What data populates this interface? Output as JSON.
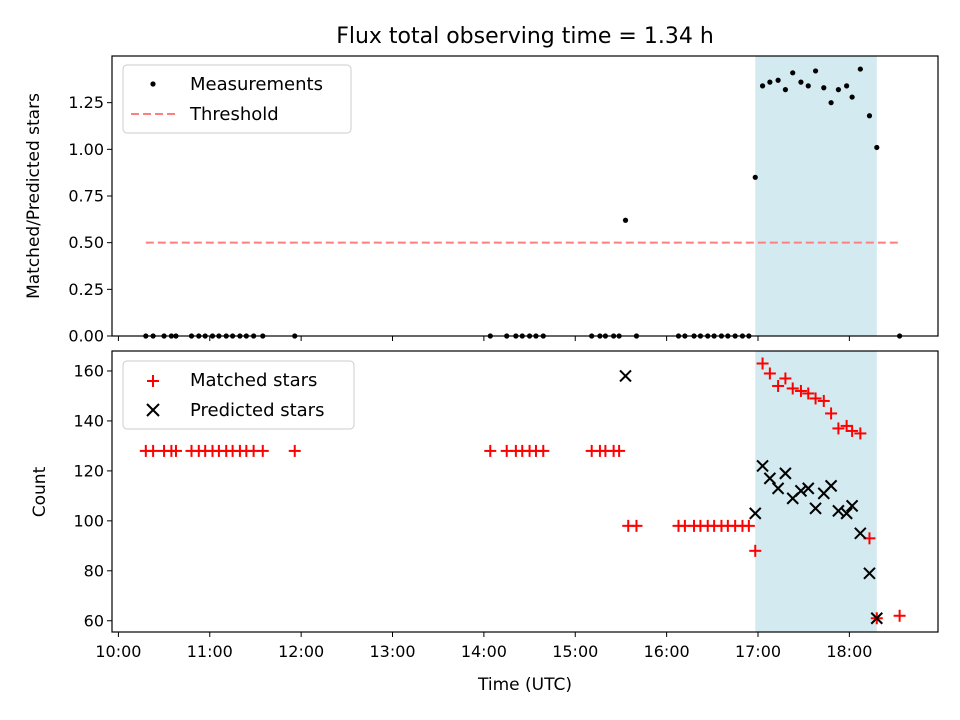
{
  "chart_data": {
    "title": "Flux total observing time = 1.34 h",
    "xlabel": "Time (UTC)",
    "x_ticks": [
      "10:00",
      "11:00",
      "12:00",
      "13:00",
      "14:00",
      "15:00",
      "16:00",
      "17:00",
      "18:00"
    ],
    "x_tick_values": [
      10,
      11,
      12,
      13,
      14,
      15,
      16,
      17,
      18
    ],
    "xlim": [
      9.93,
      18.97
    ],
    "highlight_span": [
      16.97,
      18.3
    ],
    "highlight_color": "#d3eaf0",
    "panels": [
      {
        "type": "scatter",
        "ylabel": "Matched/Predicted stars",
        "ylim": [
          0,
          1.5
        ],
        "y_ticks": [
          "0.00",
          "0.25",
          "0.50",
          "0.75",
          "1.00",
          "1.25"
        ],
        "y_tick_values": [
          0,
          0.25,
          0.5,
          0.75,
          1.0,
          1.25
        ],
        "legend": [
          "Measurements",
          "Threshold"
        ],
        "series": [
          {
            "name": "Measurements",
            "color": "#000000",
            "marker": "dot",
            "x": [
              10.3,
              10.38,
              10.5,
              10.58,
              10.63,
              10.8,
              10.88,
              10.95,
              11.03,
              11.1,
              11.18,
              11.25,
              11.33,
              11.4,
              11.48,
              11.58,
              11.93,
              14.07,
              14.25,
              14.35,
              14.42,
              14.5,
              14.57,
              14.65,
              15.18,
              15.27,
              15.33,
              15.42,
              15.48,
              15.55,
              15.67,
              16.13,
              16.2,
              16.3,
              16.37,
              16.45,
              16.52,
              16.6,
              16.67,
              16.75,
              16.83,
              16.9,
              16.97,
              17.05,
              17.13,
              17.22,
              17.3,
              17.38,
              17.47,
              17.55,
              17.63,
              17.72,
              17.8,
              17.88,
              17.97,
              18.03,
              18.12,
              18.22,
              18.3,
              18.55
            ],
            "y": [
              0,
              0,
              0,
              0,
              0,
              0,
              0,
              0,
              0,
              0,
              0,
              0,
              0,
              0,
              0,
              0,
              0,
              0,
              0,
              0,
              0,
              0,
              0,
              0,
              0,
              0,
              0,
              0,
              0,
              0.62,
              0,
              0,
              0,
              0,
              0,
              0,
              0,
              0,
              0,
              0,
              0,
              0,
              0.85,
              1.34,
              1.36,
              1.37,
              1.32,
              1.41,
              1.36,
              1.34,
              1.42,
              1.33,
              1.25,
              1.32,
              1.34,
              1.28,
              1.43,
              1.18,
              1.01,
              0
            ]
          },
          {
            "name": "Threshold",
            "color": "#ff7f7f",
            "style": "dashed",
            "x": [
              10.3,
              18.55
            ],
            "y": [
              0.5,
              0.5
            ]
          }
        ]
      },
      {
        "type": "scatter",
        "ylabel": "Count",
        "ylim": [
          55.5,
          168
        ],
        "y_ticks": [
          "60",
          "80",
          "100",
          "120",
          "140",
          "160"
        ],
        "y_tick_values": [
          60,
          80,
          100,
          120,
          140,
          160
        ],
        "legend": [
          "Matched stars",
          "Predicted stars"
        ],
        "series": [
          {
            "name": "Matched stars",
            "color": "#ff0000",
            "marker": "plus",
            "x": [
              10.3,
              10.38,
              10.5,
              10.58,
              10.63,
              10.8,
              10.88,
              10.95,
              11.03,
              11.1,
              11.18,
              11.25,
              11.33,
              11.4,
              11.48,
              11.58,
              11.93,
              14.07,
              14.25,
              14.35,
              14.42,
              14.5,
              14.57,
              14.65,
              15.18,
              15.27,
              15.33,
              15.42,
              15.48,
              15.58,
              15.67,
              16.13,
              16.2,
              16.3,
              16.37,
              16.45,
              16.52,
              16.6,
              16.67,
              16.75,
              16.83,
              16.9,
              16.97,
              17.05,
              17.13,
              17.22,
              17.3,
              17.38,
              17.47,
              17.55,
              17.63,
              17.72,
              17.8,
              17.88,
              17.97,
              18.03,
              18.12,
              18.22,
              18.3,
              18.55
            ],
            "y": [
              128,
              128,
              128,
              128,
              128,
              128,
              128,
              128,
              128,
              128,
              128,
              128,
              128,
              128,
              128,
              128,
              128,
              128,
              128,
              128,
              128,
              128,
              128,
              128,
              128,
              128,
              128,
              128,
              128,
              98,
              98,
              98,
              98,
              98,
              98,
              98,
              98,
              98,
              98,
              98,
              98,
              98,
              88,
              163,
              159,
              154,
              157,
              153,
              152,
              151,
              149,
              148,
              143,
              137,
              138,
              136,
              135,
              93,
              61,
              62
            ]
          },
          {
            "name": "Predicted stars",
            "color": "#000000",
            "marker": "x",
            "x": [
              15.55,
              16.97,
              17.05,
              17.13,
              17.22,
              17.3,
              17.38,
              17.47,
              17.55,
              17.63,
              17.72,
              17.8,
              17.88,
              17.97,
              18.03,
              18.12,
              18.22,
              18.3
            ],
            "y": [
              158,
              103,
              122,
              117,
              113,
              119,
              109,
              112,
              113,
              105,
              111,
              114,
              104,
              103,
              106,
              95,
              79,
              61
            ]
          }
        ]
      }
    ]
  }
}
